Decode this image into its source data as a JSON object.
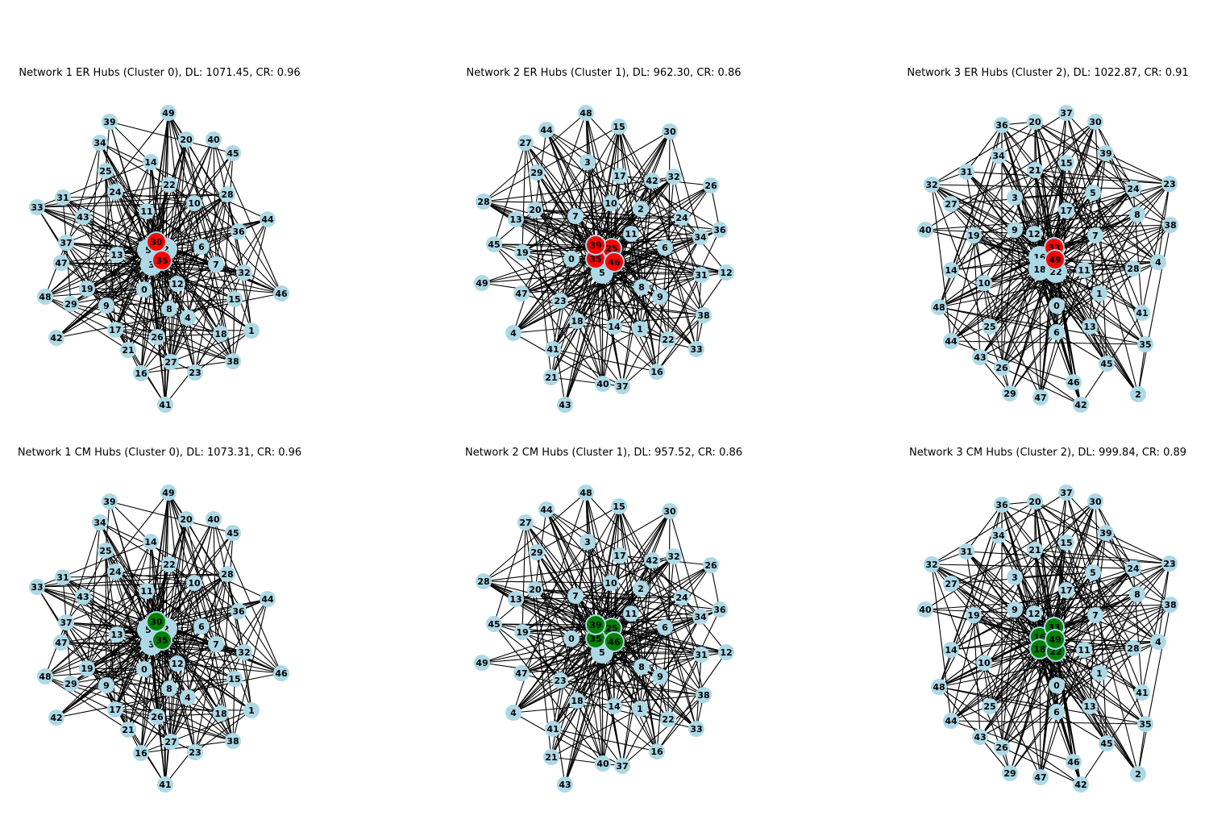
{
  "figure": {
    "node_color": "#add8e6",
    "er_hub_color": "#ff0000",
    "cm_hub_color": "#008000",
    "edge_color": "#000000",
    "panels": [
      {
        "title": "Network 1 ER Hubs (Cluster 0), DL: 1071.45, CR: 0.96",
        "network": 1,
        "hubs": [
          "30",
          "35"
        ],
        "hub_color": "#ff0000",
        "big": [
          "5",
          "2",
          "3"
        ]
      },
      {
        "title": "Network 2 ER Hubs (Cluster 1), DL: 962.30, CR: 0.86",
        "network": 2,
        "hubs": [
          "39",
          "25",
          "35",
          "46"
        ],
        "hub_color": "#ff0000",
        "big": [
          "5"
        ]
      },
      {
        "title": "Network 3 ER Hubs (Cluster 2), DL: 1022.87, CR: 0.91",
        "network": 3,
        "hubs": [
          "33",
          "49"
        ],
        "hub_color": "#ff0000",
        "big": [
          "16",
          "18",
          "22"
        ]
      },
      {
        "title": "Network 1 CM Hubs (Cluster 0), DL: 1073.31, CR: 0.96",
        "network": 1,
        "hubs": [
          "30",
          "35"
        ],
        "hub_color": "#008000",
        "big": [
          "5",
          "2",
          "3"
        ]
      },
      {
        "title": "Network 2 CM Hubs (Cluster 1), DL: 957.52, CR: 0.86",
        "network": 2,
        "hubs": [
          "39",
          "25",
          "35",
          "46"
        ],
        "hub_color": "#008000",
        "big": [
          "5"
        ]
      },
      {
        "title": "Network 3 CM Hubs (Cluster 2), DL: 999.84, CR: 0.89",
        "network": 3,
        "hubs": [
          "33",
          "49",
          "16",
          "18",
          "22"
        ],
        "hub_color": "#008000",
        "big": []
      }
    ]
  }
}
